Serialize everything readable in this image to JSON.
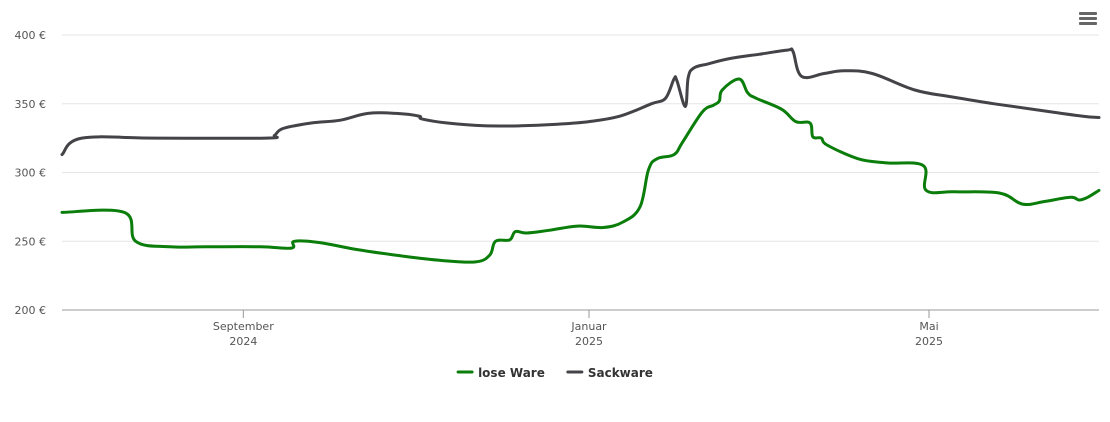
{
  "menu": {
    "icon": "hamburger-menu-icon"
  },
  "chart_data": {
    "type": "line",
    "x_axis": {
      "ticks": [
        {
          "date": "2024-09-01",
          "line1": "September",
          "line2": "2024"
        },
        {
          "date": "2025-01-01",
          "line1": "Januar",
          "line2": "2025"
        },
        {
          "date": "2025-05-01",
          "line1": "Mai",
          "line2": "2025"
        }
      ],
      "range": [
        "2024-06-29",
        "2025-06-30"
      ]
    },
    "y_axis": {
      "ticks": [
        "200 €",
        "250 €",
        "300 €",
        "350 €",
        "400 €"
      ],
      "tick_values": [
        200,
        250,
        300,
        350,
        400
      ],
      "range": [
        200,
        400
      ]
    },
    "grid": true,
    "legend_position": "bottom-center",
    "series": [
      {
        "name": "lose Ware",
        "color": "#0a7d0a",
        "points": [
          [
            "2024-06-29",
            271
          ],
          [
            "2024-07-21",
            271
          ],
          [
            "2024-07-25",
            250
          ],
          [
            "2024-08-06",
            246
          ],
          [
            "2024-08-19",
            246
          ],
          [
            "2024-09-07",
            246
          ],
          [
            "2024-09-18",
            245
          ],
          [
            "2024-09-19",
            250
          ],
          [
            "2024-09-28",
            249
          ],
          [
            "2024-10-11",
            244
          ],
          [
            "2024-10-28",
            239
          ],
          [
            "2024-11-10",
            236
          ],
          [
            "2024-11-22",
            235
          ],
          [
            "2024-11-27",
            240
          ],
          [
            "2024-11-29",
            250
          ],
          [
            "2024-12-04",
            251
          ],
          [
            "2024-12-06",
            257
          ],
          [
            "2024-12-10",
            256
          ],
          [
            "2024-12-18",
            258
          ],
          [
            "2024-12-28",
            261
          ],
          [
            "2025-01-06",
            260
          ],
          [
            "2025-01-13",
            264
          ],
          [
            "2025-01-19",
            275
          ],
          [
            "2025-01-22",
            302
          ],
          [
            "2025-01-25",
            310
          ],
          [
            "2025-01-31",
            313
          ],
          [
            "2025-02-03",
            322
          ],
          [
            "2025-02-10",
            344
          ],
          [
            "2025-02-14",
            349
          ],
          [
            "2025-02-16",
            352
          ],
          [
            "2025-02-17",
            360
          ],
          [
            "2025-02-23",
            368
          ],
          [
            "2025-02-26",
            358
          ],
          [
            "2025-03-01",
            354
          ],
          [
            "2025-03-10",
            346
          ],
          [
            "2025-03-15",
            337
          ],
          [
            "2025-03-20",
            336
          ],
          [
            "2025-03-21",
            326
          ],
          [
            "2025-03-24",
            325
          ],
          [
            "2025-03-26",
            320
          ],
          [
            "2025-04-06",
            310
          ],
          [
            "2025-04-16",
            307
          ],
          [
            "2025-04-29",
            305
          ],
          [
            "2025-04-30",
            287
          ],
          [
            "2025-05-10",
            286
          ],
          [
            "2025-05-26",
            285
          ],
          [
            "2025-06-03",
            277
          ],
          [
            "2025-06-11",
            279
          ],
          [
            "2025-06-20",
            282
          ],
          [
            "2025-06-23",
            280
          ],
          [
            "2025-06-26",
            282
          ],
          [
            "2025-06-30",
            287
          ]
        ]
      },
      {
        "name": "Sackware",
        "color": "#444448",
        "points": [
          [
            "2024-06-29",
            313
          ],
          [
            "2024-07-06",
            325
          ],
          [
            "2024-08-01",
            325
          ],
          [
            "2024-09-09",
            325
          ],
          [
            "2024-09-12",
            327
          ],
          [
            "2024-09-15",
            332
          ],
          [
            "2024-09-25",
            336
          ],
          [
            "2024-10-05",
            338
          ],
          [
            "2024-10-15",
            343
          ],
          [
            "2024-10-25",
            343
          ],
          [
            "2024-11-02",
            341
          ],
          [
            "2024-11-03",
            339
          ],
          [
            "2024-11-12",
            336
          ],
          [
            "2024-11-25",
            334
          ],
          [
            "2024-12-08",
            334
          ],
          [
            "2024-12-20",
            335
          ],
          [
            "2025-01-01",
            337
          ],
          [
            "2025-01-12",
            341
          ],
          [
            "2025-01-23",
            350
          ],
          [
            "2025-01-28",
            354
          ],
          [
            "2025-01-31",
            368
          ],
          [
            "2025-02-01",
            367
          ],
          [
            "2025-02-04",
            348
          ],
          [
            "2025-02-05",
            369
          ],
          [
            "2025-02-07",
            376
          ],
          [
            "2025-02-12",
            379
          ],
          [
            "2025-02-20",
            383
          ],
          [
            "2025-03-02",
            386
          ],
          [
            "2025-03-12",
            389
          ],
          [
            "2025-03-14",
            388
          ],
          [
            "2025-03-17",
            370
          ],
          [
            "2025-03-25",
            372
          ],
          [
            "2025-04-01",
            374
          ],
          [
            "2025-04-11",
            372
          ],
          [
            "2025-04-26",
            360
          ],
          [
            "2025-05-09",
            355
          ],
          [
            "2025-05-24",
            350
          ],
          [
            "2025-06-10",
            345
          ],
          [
            "2025-06-24",
            341
          ],
          [
            "2025-06-30",
            340
          ]
        ]
      }
    ]
  }
}
